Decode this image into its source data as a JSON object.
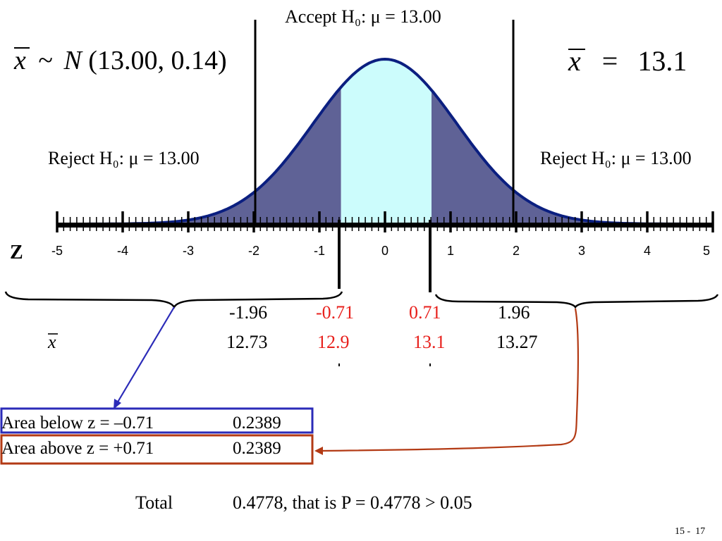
{
  "distribution": {
    "xbar_symbol": "x",
    "tilde": "~",
    "N": "N",
    "params": "(13.00, 0.14)"
  },
  "sample": {
    "xbar_symbol": "x",
    "equals": "=",
    "value": "13.1"
  },
  "regions": {
    "accept_label": "Accept H₀: μ = 13.00",
    "reject_left_label": "Reject H₀: μ = 13.00",
    "reject_right_label": "Reject H₀: μ = 13.00"
  },
  "axis": {
    "z_label": "Z",
    "ticks": [
      "-5",
      "-4",
      "-3",
      "-2",
      "-1",
      "0",
      "1",
      "2",
      "3",
      "4",
      "5"
    ]
  },
  "table": {
    "z_values": [
      "-1.96",
      "-0.71",
      "0.71",
      "1.96"
    ],
    "xbar_row_label": "x",
    "xbar_values": [
      "12.73",
      "12.9",
      "13.1",
      "13.27"
    ]
  },
  "areas": {
    "below_label": "Area below z = –0.71",
    "below_value": "0.2389",
    "above_label": "Area above z = +0.71",
    "above_value": "0.2389",
    "total_label": "Total",
    "total_value": "0.4778, that is P = 0.4778 > 0.05"
  },
  "slide_number": "15 -  17",
  "colors": {
    "curve": "#0b1f80",
    "tail_fill": "#5f6296",
    "center_fill": "#ccfcfc",
    "highlight_red": "#e8201c",
    "box_blue": "#2b2bb8",
    "box_red": "#b33a14"
  }
}
